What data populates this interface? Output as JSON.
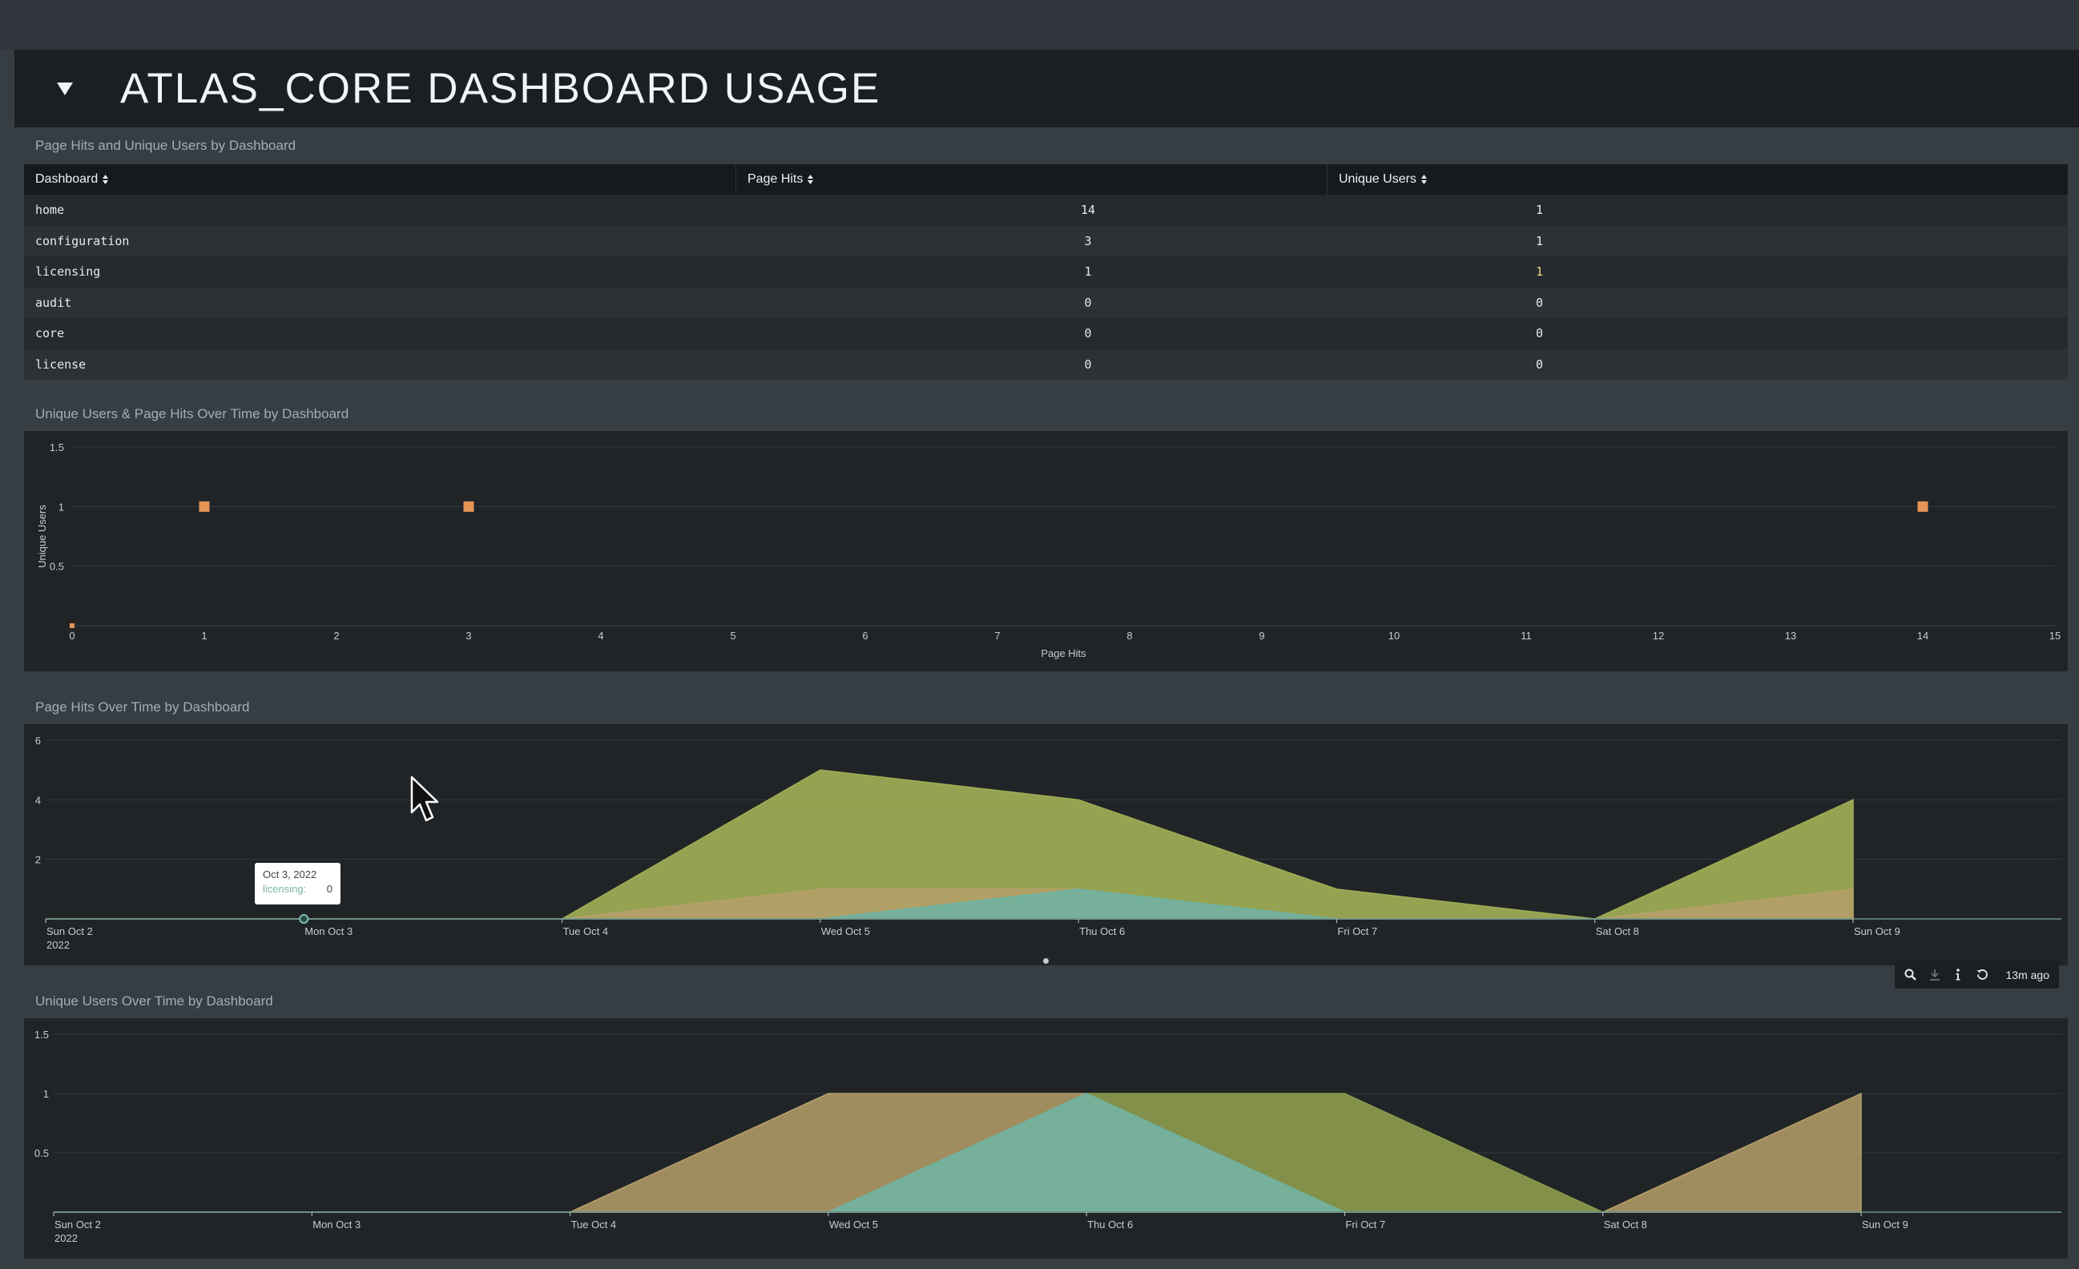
{
  "section": {
    "title": "ATLAS_CORE DASHBOARD USAGE"
  },
  "table_panel": {
    "title": "Page Hits and Unique Users by Dashboard",
    "columns": [
      "Dashboard",
      "Page Hits",
      "Unique Users"
    ],
    "rows": [
      {
        "dashboard": "home",
        "page_hits": "14",
        "unique_users": "1"
      },
      {
        "dashboard": "configuration",
        "page_hits": "3",
        "unique_users": "1"
      },
      {
        "dashboard": "licensing",
        "page_hits": "1",
        "unique_users": "1"
      },
      {
        "dashboard": "audit",
        "page_hits": "0",
        "unique_users": "0"
      },
      {
        "dashboard": "core",
        "page_hits": "0",
        "unique_users": "0"
      },
      {
        "dashboard": "license",
        "page_hits": "0",
        "unique_users": "0"
      }
    ]
  },
  "scatter_panel": {
    "title": "Unique Users & Page Hits Over Time by Dashboard"
  },
  "area_hits_panel": {
    "title": "Page Hits Over Time by Dashboard",
    "tooltip": {
      "date": "Oct 3, 2022",
      "series": "licensing:",
      "value": "0"
    },
    "toolbar": {
      "time": "13m ago",
      "icons": [
        "search-icon",
        "download-icon",
        "info-icon",
        "refresh-icon"
      ]
    }
  },
  "area_users_panel": {
    "title": "Unique Users Over Time by Dashboard"
  },
  "colors": {
    "olive": "#9fae55",
    "tan": "#b6a06a",
    "teal": "#6cb3a3",
    "orange": "#e79556",
    "panel_bg": "#212427",
    "page_bg": "#363d43"
  },
  "chart_data": [
    {
      "type": "scatter",
      "xlabel": "Page Hits",
      "ylabel": "Unique Users",
      "xlim": [
        0,
        15
      ],
      "ylim": [
        0,
        1.5
      ],
      "x_ticks": [
        "0",
        "1",
        "2",
        "3",
        "4",
        "5",
        "6",
        "7",
        "8",
        "9",
        "10",
        "11",
        "12",
        "13",
        "14",
        "15"
      ],
      "y_ticks": [
        "0.5",
        "1",
        "1.5"
      ],
      "grid": true,
      "points": [
        {
          "x": 14,
          "y": 1
        },
        {
          "x": 3,
          "y": 1
        },
        {
          "x": 1,
          "y": 1
        },
        {
          "x": 0,
          "y": 0
        }
      ]
    },
    {
      "type": "area",
      "x": [
        "Sun Oct 2",
        "Mon Oct 3",
        "Tue Oct 4",
        "Wed Oct 5",
        "Thu Oct 6",
        "Fri Oct 7",
        "Sat Oct 8",
        "Sun Oct 9"
      ],
      "x_sub": "2022",
      "ylim": [
        0,
        6
      ],
      "y_ticks": [
        "2",
        "4",
        "6"
      ],
      "grid": true,
      "series": [
        {
          "values": [
            0,
            0,
            0,
            5,
            4,
            1,
            0,
            4
          ],
          "color": "#9fae55"
        },
        {
          "values": [
            0,
            0,
            0,
            1,
            1,
            0,
            0,
            1
          ],
          "color": "#b6a06a"
        },
        {
          "name": "licensing",
          "values": [
            0,
            0,
            0,
            0,
            1,
            0,
            0,
            0
          ],
          "color": "#6cb3a3"
        }
      ]
    },
    {
      "type": "area",
      "x": [
        "Sun Oct 2",
        "Mon Oct 3",
        "Tue Oct 4",
        "Wed Oct 5",
        "Thu Oct 6",
        "Fri Oct 7",
        "Sat Oct 8",
        "Sun Oct 9"
      ],
      "x_sub": "2022",
      "ylim": [
        0,
        1.5
      ],
      "y_ticks": [
        "0.5",
        "1",
        "1.5"
      ],
      "grid": true,
      "series": [
        {
          "values": [
            0,
            0,
            0,
            0,
            1,
            1,
            0,
            0
          ],
          "color": "#8b9a4c"
        },
        {
          "values": [
            0,
            0,
            0,
            1,
            1,
            0,
            0,
            1
          ],
          "color": "#b6a06a"
        },
        {
          "values": [
            0,
            0,
            0,
            0,
            1,
            0,
            0,
            0
          ],
          "color": "#6cb3a3"
        }
      ]
    }
  ]
}
